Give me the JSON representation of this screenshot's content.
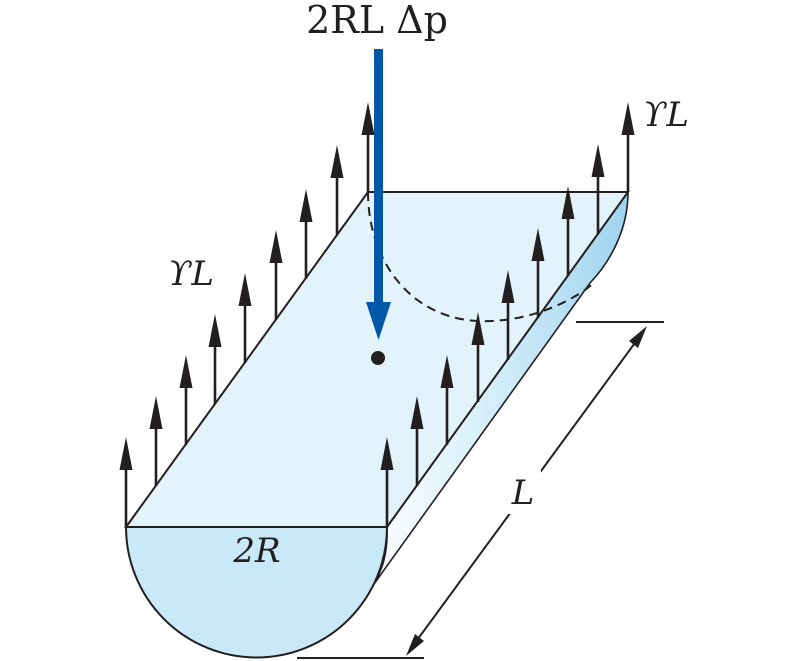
{
  "labels": {
    "force_top": "2RL Δp",
    "tension_left": "ϒL",
    "tension_right": "ϒL",
    "width": "2R",
    "length": "L"
  },
  "colors": {
    "surface_top": "#e3f3fb",
    "cylinder_side": "#cbe9f8",
    "end_cap": "#c9e8f8",
    "outline": "#231f20",
    "force_arrow": "#0057a8",
    "tension_arrows": "#231f20"
  }
}
